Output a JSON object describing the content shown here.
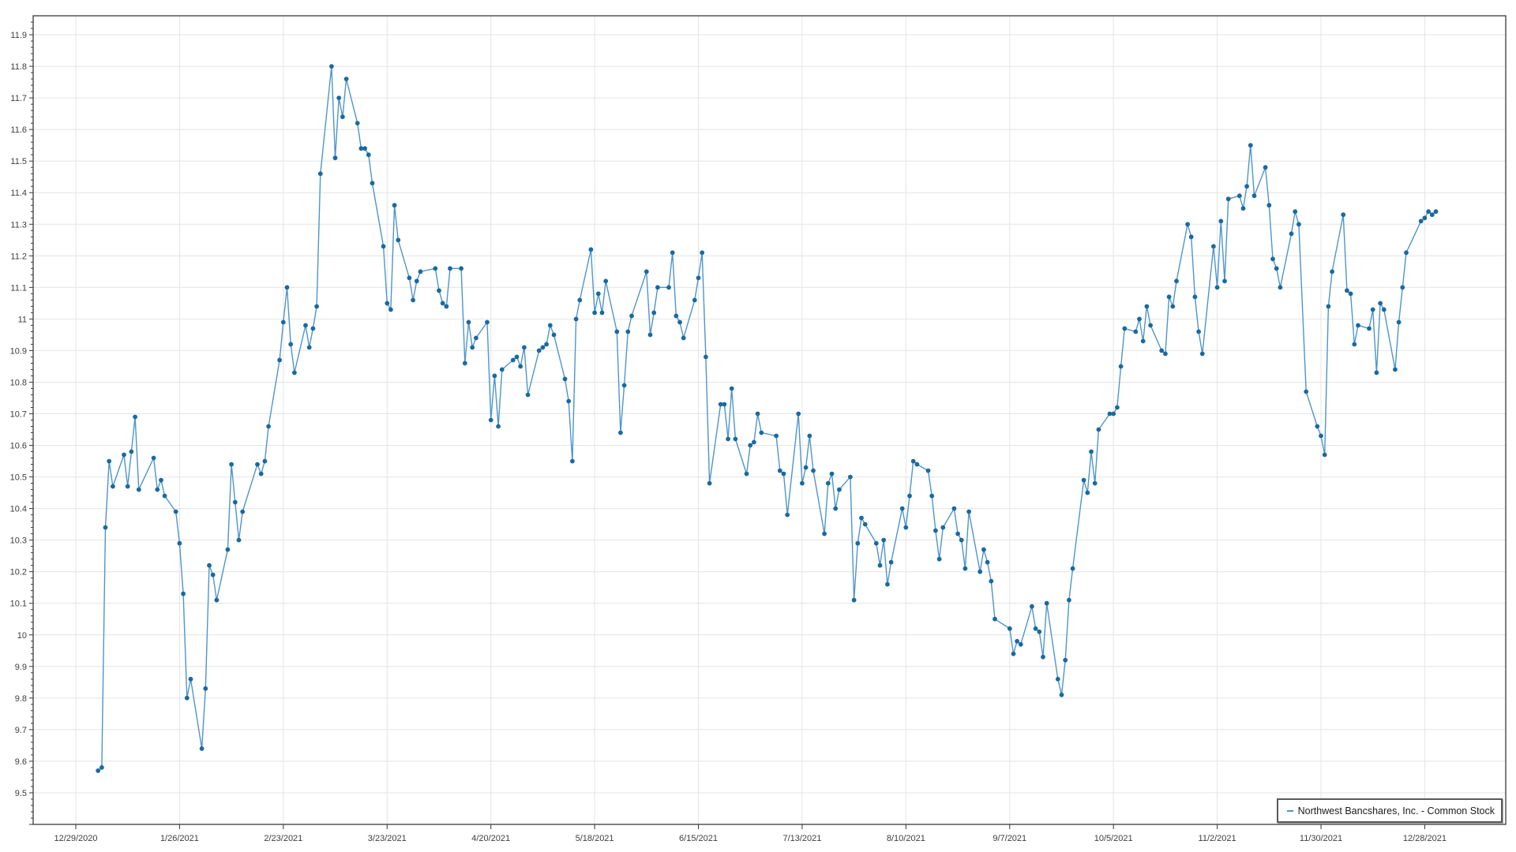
{
  "chart_data": {
    "type": "line",
    "title": "",
    "xlabel": "",
    "ylabel": "",
    "grid": true,
    "legend_position": "bottom-right",
    "x_tick_labels": [
      "12/29/2020",
      "1/26/2021",
      "2/23/2021",
      "3/23/2021",
      "4/20/2021",
      "5/18/2021",
      "6/15/2021",
      "7/13/2021",
      "8/10/2021",
      "9/7/2021",
      "10/5/2021",
      "11/2/2021",
      "11/30/2021",
      "12/28/2021"
    ],
    "y_ticks": {
      "min": 9.5,
      "max": 11.9,
      "step": 0.1
    },
    "ylim": [
      9.4,
      11.96
    ],
    "series": [
      {
        "name": "Northwest Bancshares, Inc. - Common Stock",
        "line_color": "#4e95cb",
        "marker_color": "#1a699f",
        "dates": [
          "1/4/2021",
          "1/5/2021",
          "1/6/2021",
          "1/7/2021",
          "1/8/2021",
          "1/11/2021",
          "1/12/2021",
          "1/13/2021",
          "1/14/2021",
          "1/15/2021",
          "1/19/2021",
          "1/20/2021",
          "1/21/2021",
          "1/22/2021",
          "1/25/2021",
          "1/26/2021",
          "1/27/2021",
          "1/28/2021",
          "1/29/2021",
          "2/1/2021",
          "2/2/2021",
          "2/3/2021",
          "2/4/2021",
          "2/5/2021",
          "2/8/2021",
          "2/9/2021",
          "2/10/2021",
          "2/11/2021",
          "2/12/2021",
          "2/16/2021",
          "2/17/2021",
          "2/18/2021",
          "2/19/2021",
          "2/22/2021",
          "2/23/2021",
          "2/24/2021",
          "2/25/2021",
          "2/26/2021",
          "3/1/2021",
          "3/2/2021",
          "3/3/2021",
          "3/4/2021",
          "3/5/2021",
          "3/8/2021",
          "3/9/2021",
          "3/10/2021",
          "3/11/2021",
          "3/12/2021",
          "3/15/2021",
          "3/16/2021",
          "3/17/2021",
          "3/18/2021",
          "3/19/2021",
          "3/22/2021",
          "3/23/2021",
          "3/24/2021",
          "3/25/2021",
          "3/26/2021",
          "3/29/2021",
          "3/30/2021",
          "3/31/2021",
          "4/1/2021",
          "4/5/2021",
          "4/6/2021",
          "4/7/2021",
          "4/8/2021",
          "4/9/2021",
          "4/12/2021",
          "4/13/2021",
          "4/14/2021",
          "4/15/2021",
          "4/16/2021",
          "4/19/2021",
          "4/20/2021",
          "4/21/2021",
          "4/22/2021",
          "4/23/2021",
          "4/26/2021",
          "4/27/2021",
          "4/28/2021",
          "4/29/2021",
          "4/30/2021",
          "5/3/2021",
          "5/4/2021",
          "5/5/2021",
          "5/6/2021",
          "5/7/2021",
          "5/10/2021",
          "5/11/2021",
          "5/12/2021",
          "5/13/2021",
          "5/14/2021",
          "5/17/2021",
          "5/18/2021",
          "5/19/2021",
          "5/20/2021",
          "5/21/2021",
          "5/24/2021",
          "5/25/2021",
          "5/26/2021",
          "5/27/2021",
          "5/28/2021",
          "6/1/2021",
          "6/2/2021",
          "6/3/2021",
          "6/4/2021",
          "6/7/2021",
          "6/8/2021",
          "6/9/2021",
          "6/10/2021",
          "6/11/2021",
          "6/14/2021",
          "6/15/2021",
          "6/16/2021",
          "6/17/2021",
          "6/18/2021",
          "6/21/2021",
          "6/22/2021",
          "6/23/2021",
          "6/24/2021",
          "6/25/2021",
          "6/28/2021",
          "6/29/2021",
          "6/30/2021",
          "7/1/2021",
          "7/2/2021",
          "7/6/2021",
          "7/7/2021",
          "7/8/2021",
          "7/9/2021",
          "7/12/2021",
          "7/13/2021",
          "7/14/2021",
          "7/15/2021",
          "7/16/2021",
          "7/19/2021",
          "7/20/2021",
          "7/21/2021",
          "7/22/2021",
          "7/23/2021",
          "7/26/2021",
          "7/27/2021",
          "7/28/2021",
          "7/29/2021",
          "7/30/2021",
          "8/2/2021",
          "8/3/2021",
          "8/4/2021",
          "8/5/2021",
          "8/6/2021",
          "8/9/2021",
          "8/10/2021",
          "8/11/2021",
          "8/12/2021",
          "8/13/2021",
          "8/16/2021",
          "8/17/2021",
          "8/18/2021",
          "8/19/2021",
          "8/20/2021",
          "8/23/2021",
          "8/24/2021",
          "8/25/2021",
          "8/26/2021",
          "8/27/2021",
          "8/30/2021",
          "8/31/2021",
          "9/1/2021",
          "9/2/2021",
          "9/3/2021",
          "9/7/2021",
          "9/8/2021",
          "9/9/2021",
          "9/10/2021",
          "9/13/2021",
          "9/14/2021",
          "9/15/2021",
          "9/16/2021",
          "9/17/2021",
          "9/20/2021",
          "9/21/2021",
          "9/22/2021",
          "9/23/2021",
          "9/24/2021",
          "9/27/2021",
          "9/28/2021",
          "9/29/2021",
          "9/30/2021",
          "10/1/2021",
          "10/4/2021",
          "10/5/2021",
          "10/6/2021",
          "10/7/2021",
          "10/8/2021",
          "10/11/2021",
          "10/12/2021",
          "10/13/2021",
          "10/14/2021",
          "10/15/2021",
          "10/18/2021",
          "10/19/2021",
          "10/20/2021",
          "10/21/2021",
          "10/22/2021",
          "10/25/2021",
          "10/26/2021",
          "10/27/2021",
          "10/28/2021",
          "10/29/2021",
          "11/1/2021",
          "11/2/2021",
          "11/3/2021",
          "11/4/2021",
          "11/5/2021",
          "11/8/2021",
          "11/9/2021",
          "11/10/2021",
          "11/11/2021",
          "11/12/2021",
          "11/15/2021",
          "11/16/2021",
          "11/17/2021",
          "11/18/2021",
          "11/19/2021",
          "11/22/2021",
          "11/23/2021",
          "11/24/2021",
          "11/26/2021",
          "11/29/2021",
          "11/30/2021",
          "12/1/2021",
          "12/2/2021",
          "12/3/2021",
          "12/6/2021",
          "12/7/2021",
          "12/8/2021",
          "12/9/2021",
          "12/10/2021",
          "12/13/2021",
          "12/14/2021",
          "12/15/2021",
          "12/16/2021",
          "12/17/2021",
          "12/20/2021",
          "12/21/2021",
          "12/22/2021",
          "12/23/2021",
          "12/27/2021",
          "12/28/2021",
          "12/29/2021",
          "12/30/2021",
          "12/31/2021"
        ],
        "values": [
          9.57,
          9.58,
          10.34,
          10.55,
          10.47,
          10.57,
          10.47,
          10.58,
          10.69,
          10.46,
          10.56,
          10.46,
          10.49,
          10.44,
          10.39,
          10.29,
          10.13,
          9.8,
          9.86,
          9.64,
          9.83,
          10.22,
          10.19,
          10.11,
          10.27,
          10.54,
          10.42,
          10.3,
          10.39,
          10.54,
          10.51,
          10.55,
          10.66,
          10.87,
          10.99,
          11.1,
          10.92,
          10.83,
          10.98,
          10.91,
          10.97,
          11.04,
          11.46,
          11.8,
          11.51,
          11.7,
          11.64,
          11.76,
          11.62,
          11.54,
          11.54,
          11.52,
          11.43,
          11.23,
          11.05,
          11.03,
          11.36,
          11.25,
          11.13,
          11.06,
          11.12,
          11.15,
          11.16,
          11.09,
          11.05,
          11.04,
          11.16,
          11.16,
          10.86,
          10.99,
          10.91,
          10.94,
          10.99,
          10.68,
          10.82,
          10.66,
          10.84,
          10.87,
          10.88,
          10.85,
          10.91,
          10.76,
          10.9,
          10.91,
          10.92,
          10.98,
          10.95,
          10.81,
          10.74,
          10.55,
          11.0,
          11.06,
          11.22,
          11.02,
          11.08,
          11.02,
          11.12,
          10.96,
          10.64,
          10.79,
          10.96,
          11.01,
          11.15,
          10.95,
          11.02,
          11.1,
          11.1,
          11.21,
          11.01,
          10.99,
          10.94,
          11.06,
          11.13,
          11.21,
          10.88,
          10.48,
          10.73,
          10.73,
          10.62,
          10.78,
          10.62,
          10.51,
          10.6,
          10.61,
          10.7,
          10.64,
          10.63,
          10.52,
          10.51,
          10.38,
          10.7,
          10.48,
          10.53,
          10.63,
          10.52,
          10.32,
          10.48,
          10.51,
          10.4,
          10.46,
          10.5,
          10.11,
          10.29,
          10.37,
          10.35,
          10.29,
          10.22,
          10.3,
          10.16,
          10.23,
          10.4,
          10.34,
          10.44,
          10.55,
          10.54,
          10.52,
          10.44,
          10.33,
          10.24,
          10.34,
          10.4,
          10.32,
          10.3,
          10.21,
          10.39,
          10.2,
          10.27,
          10.23,
          10.17,
          10.05,
          10.02,
          9.94,
          9.98,
          9.97,
          10.09,
          10.02,
          10.01,
          9.93,
          10.1,
          9.86,
          9.81,
          9.92,
          10.11,
          10.21,
          10.49,
          10.45,
          10.58,
          10.48,
          10.65,
          10.7,
          10.7,
          10.72,
          10.85,
          10.97,
          10.96,
          11.0,
          10.93,
          11.04,
          10.98,
          10.9,
          10.89,
          11.07,
          11.04,
          11.12,
          11.3,
          11.26,
          11.07,
          10.96,
          10.89,
          11.23,
          11.1,
          11.31,
          11.12,
          11.38,
          11.39,
          11.35,
          11.42,
          11.55,
          11.39,
          11.48,
          11.36,
          11.19,
          11.16,
          11.1,
          11.27,
          11.34,
          11.3,
          10.77,
          10.66,
          10.63,
          10.57,
          11.04,
          11.15,
          11.33,
          11.09,
          11.08,
          10.92,
          10.98,
          10.97,
          11.03,
          10.83,
          11.05,
          11.03,
          10.84,
          10.99,
          11.1,
          11.21,
          11.31,
          11.32,
          11.34,
          11.33,
          11.34
        ]
      }
    ],
    "colors": {
      "grid": "#e4e4e4",
      "border": "#474747",
      "tick": "#333333",
      "label_text": "#3d3d3d",
      "legend_border": "#595959",
      "background": "#ffffff"
    }
  },
  "legend": {
    "label": "Northwest Bancshares, Inc. - Common Stock"
  }
}
